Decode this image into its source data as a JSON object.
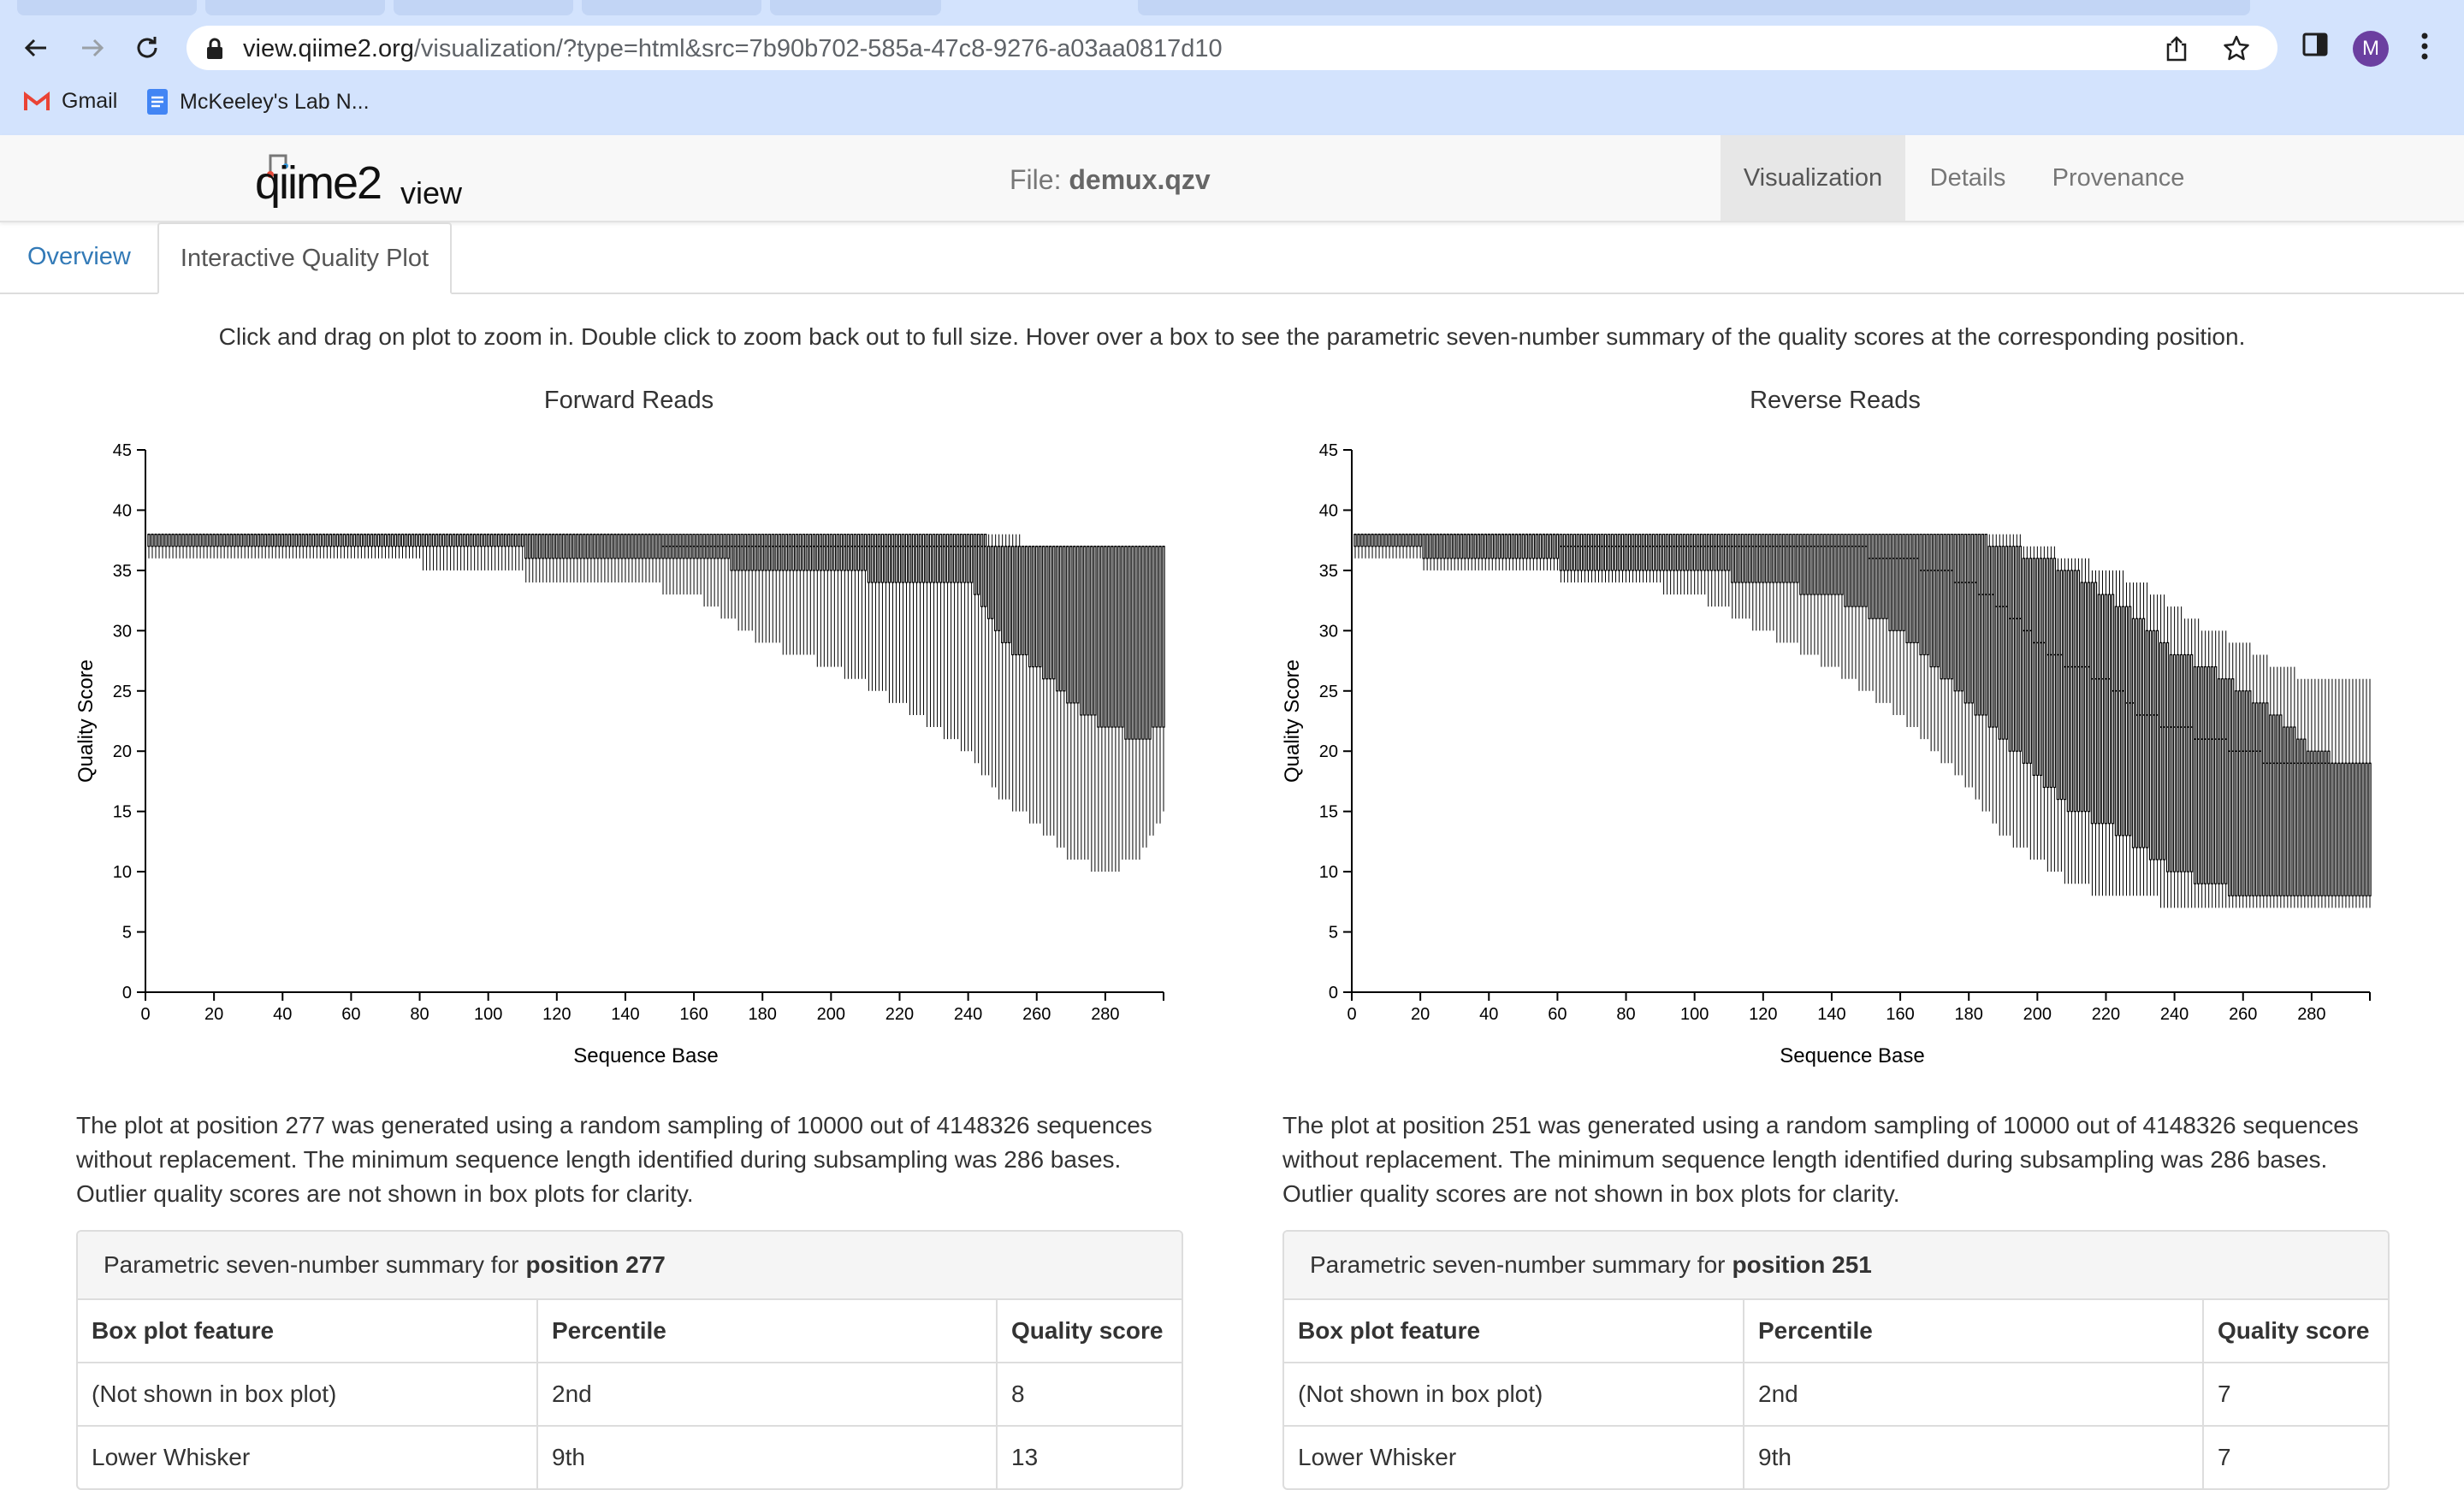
{
  "browser": {
    "url_host": "view.qiime2.org",
    "url_path": "/visualization/?type=html&src=7b90b702-585a-47c8-9276-a03aa0817d10",
    "avatar_letter": "M",
    "bookmarks": [
      {
        "label": "Gmail",
        "icon": "gmail-icon"
      },
      {
        "label": "McKeeley's Lab N...",
        "icon": "docs-icon"
      }
    ]
  },
  "navbar": {
    "logo_text": "qiime2view",
    "file_prefix": "File:",
    "file_name": "demux.qzv",
    "tabs": [
      "Visualization",
      "Details",
      "Provenance"
    ]
  },
  "subtabs": [
    "Overview",
    "Interactive Quality Plot"
  ],
  "instructions": "Click and drag on plot to zoom in. Double click to zoom back out to full size. Hover over a box to see the parametric seven-number summary of the quality scores at the corresponding position.",
  "plots": [
    {
      "title": "Forward Reads",
      "description": "The plot at position 277 was generated using a random sampling of 10000 out of 4148326 sequences without replacement. The minimum sequence length identified during subsampling was 286 bases. Outlier quality scores are not shown in box plots for clarity.",
      "summary_prefix": "Parametric seven-number summary for",
      "summary_position": "position 277",
      "table_headers": [
        "Box plot feature",
        "Percentile",
        "Quality score"
      ],
      "table_rows": [
        [
          "(Not shown in box plot)",
          "2nd",
          "8"
        ],
        [
          "Lower Whisker",
          "9th",
          "13"
        ]
      ]
    },
    {
      "title": "Reverse Reads",
      "description": "The plot at position 251 was generated using a random sampling of 10000 out of 4148326 sequences without replacement. The minimum sequence length identified during subsampling was 286 bases. Outlier quality scores are not shown in box plots for clarity.",
      "summary_prefix": "Parametric seven-number summary for",
      "summary_position": "position 251",
      "table_headers": [
        "Box plot feature",
        "Percentile",
        "Quality score"
      ],
      "table_rows": [
        [
          "(Not shown in box plot)",
          "2nd",
          "7"
        ],
        [
          "Lower Whisker",
          "9th",
          "7"
        ]
      ]
    }
  ],
  "chart_data": [
    {
      "type": "box",
      "title": "Forward Reads",
      "xlabel": "Sequence Base",
      "ylabel": "Quality Score",
      "xlim": [
        0,
        297
      ],
      "ylim": [
        0,
        45
      ],
      "xticks": [
        0,
        20,
        40,
        60,
        80,
        100,
        120,
        140,
        160,
        180,
        200,
        220,
        240,
        260,
        280
      ],
      "yticks": [
        0,
        5,
        10,
        15,
        20,
        25,
        30,
        35,
        40,
        45
      ],
      "profile": {
        "x": [
          1,
          60,
          100,
          120,
          140,
          160,
          180,
          200,
          220,
          240,
          250,
          260,
          270,
          280,
          290,
          297
        ],
        "whisker_high": [
          38,
          38,
          38,
          38,
          38,
          38,
          38,
          38,
          38,
          38,
          38,
          37,
          37,
          37,
          37,
          37
        ],
        "q3": [
          38,
          38,
          38,
          38,
          38,
          38,
          38,
          38,
          38,
          38,
          37,
          37,
          37,
          37,
          37,
          37
        ],
        "median": [
          38,
          38,
          38,
          38,
          38,
          37,
          37,
          37,
          37,
          37,
          37,
          37,
          37,
          37,
          37,
          37
        ],
        "q1": [
          37,
          37,
          37,
          36,
          36,
          36,
          35,
          35,
          34,
          34,
          29,
          27,
          24,
          22,
          21,
          22
        ],
        "whisker_low": [
          36,
          36,
          35,
          34,
          34,
          33,
          29,
          27,
          24,
          20,
          16,
          14,
          11,
          10,
          11,
          15
        ]
      }
    },
    {
      "type": "box",
      "title": "Reverse Reads",
      "xlabel": "Sequence Base",
      "ylabel": "Quality Score",
      "xlim": [
        0,
        297
      ],
      "ylim": [
        0,
        45
      ],
      "xticks": [
        0,
        20,
        40,
        60,
        80,
        100,
        120,
        140,
        160,
        180,
        200,
        220,
        240,
        260,
        280
      ],
      "yticks": [
        0,
        5,
        10,
        15,
        20,
        25,
        30,
        35,
        40,
        45
      ],
      "profile": {
        "x": [
          1,
          40,
          80,
          100,
          120,
          140,
          160,
          180,
          190,
          200,
          210,
          220,
          230,
          240,
          250,
          260,
          270,
          280,
          290,
          297
        ],
        "whisker_high": [
          38,
          38,
          38,
          38,
          38,
          38,
          38,
          38,
          38,
          37,
          36,
          35,
          34,
          32,
          30,
          29,
          27,
          26,
          26,
          26
        ],
        "q3": [
          38,
          38,
          38,
          38,
          38,
          38,
          38,
          38,
          37,
          36,
          35,
          33,
          31,
          28,
          27,
          25,
          23,
          20,
          19,
          19
        ],
        "median": [
          38,
          38,
          37,
          37,
          37,
          37,
          36,
          34,
          32,
          29,
          27,
          26,
          23,
          22,
          21,
          20,
          19,
          19,
          19,
          19
        ],
        "q1": [
          37,
          36,
          35,
          35,
          34,
          33,
          30,
          24,
          21,
          18,
          15,
          14,
          12,
          10,
          9,
          8,
          8,
          8,
          8,
          8
        ],
        "whisker_low": [
          36,
          35,
          34,
          33,
          30,
          27,
          23,
          17,
          13,
          11,
          9,
          8,
          8,
          7,
          7,
          7,
          7,
          7,
          7,
          7
        ]
      }
    }
  ]
}
